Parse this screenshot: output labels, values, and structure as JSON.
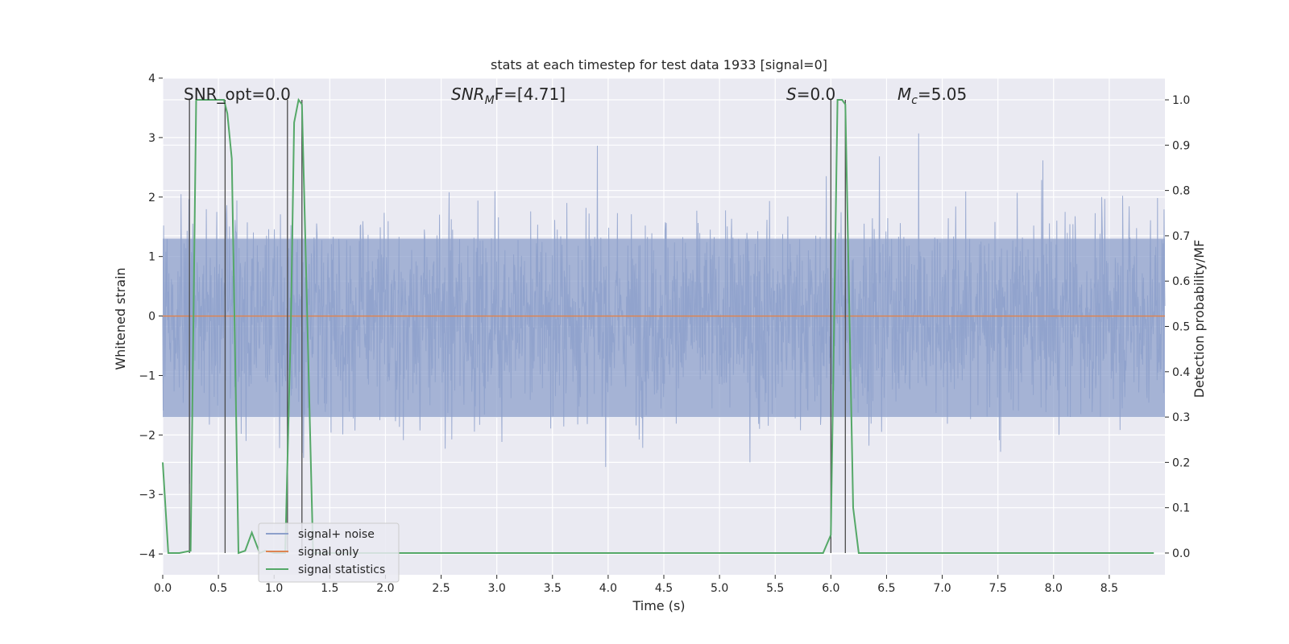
{
  "chart_data": {
    "type": "line",
    "title": "stats at each timestep for test data 1933 [signal=0]",
    "xlabel": "Time (s)",
    "ylabel": "Whitened strain",
    "y2label": "Detection probability/MF",
    "xlim": [
      0.0,
      9.0
    ],
    "ylim": [
      -4.35,
      4.0
    ],
    "y2lim": [
      -0.048,
      1.048
    ],
    "xticks": [
      0.0,
      0.5,
      1.0,
      1.5,
      2.0,
      2.5,
      3.0,
      3.5,
      4.0,
      4.5,
      5.0,
      5.5,
      6.0,
      6.5,
      7.0,
      7.5,
      8.0,
      8.5
    ],
    "xtick_labels": [
      "0.0",
      "0.5",
      "1.0",
      "1.5",
      "2.0",
      "2.5",
      "3.0",
      "3.5",
      "4.0",
      "4.5",
      "5.0",
      "5.5",
      "6.0",
      "6.5",
      "7.0",
      "7.5",
      "8.0",
      "8.5"
    ],
    "yticks": [
      4,
      3,
      2,
      1,
      0,
      -1,
      -2,
      -3,
      -4
    ],
    "ytick_labels": [
      "4",
      "3",
      "2",
      "1",
      "0",
      "−1",
      "−2",
      "−3",
      "−4"
    ],
    "y2ticks": [
      1.0,
      0.9,
      0.8,
      0.7,
      0.6,
      0.5,
      0.4,
      0.3,
      0.2,
      0.1,
      0.0
    ],
    "y2tick_labels": [
      "1.0",
      "0.9",
      "0.8",
      "0.7",
      "0.6",
      "0.5",
      "0.4",
      "0.3",
      "0.2",
      "0.1",
      "0.0"
    ],
    "grid": true,
    "legend_position": "lower-left",
    "annotations": {
      "snr_opt": "SNR_opt=0.0",
      "snr_mf_sym": "SNR",
      "snr_mf_sub": "M",
      "snr_mf_rest": "F=[4.71]",
      "s_sym": "S",
      "s_rest": "=0.0",
      "mc_sym": "M",
      "mc_sub": "c",
      "mc_rest": "=5.05"
    },
    "series": [
      {
        "name": "signal+ noise",
        "axis": "left",
        "color": "#8da0cb",
        "description_values": "noise-like whitened strain, approx. within [-3.6, 3.6]",
        "envelope_dense": [
          -1.7,
          1.3
        ]
      },
      {
        "name": "signal only",
        "axis": "left",
        "color": "#dd8452",
        "x": [
          0.0,
          9.0
        ],
        "y": [
          0.0,
          0.0
        ]
      },
      {
        "name": "signal statistics",
        "axis": "right",
        "color": "#55a868",
        "x": [
          0.0,
          0.05,
          0.15,
          0.25,
          0.3,
          0.32,
          0.55,
          0.58,
          0.62,
          0.68,
          0.74,
          0.8,
          0.87,
          0.92,
          1.0,
          1.05,
          1.1,
          1.15,
          1.18,
          1.22,
          1.25,
          1.3,
          1.35,
          1.5,
          2.8,
          3.0,
          4.0,
          5.0,
          5.93,
          6.0,
          6.06,
          6.1,
          6.13,
          6.2,
          6.25,
          7.0,
          8.0,
          8.9
        ],
        "y": [
          0.2,
          0.0,
          0.0,
          0.005,
          1.0,
          1.0,
          1.0,
          0.97,
          0.87,
          0.0,
          0.005,
          0.045,
          0.0,
          0.005,
          0.0,
          0.0,
          0.0,
          0.5,
          0.95,
          1.0,
          0.99,
          0.5,
          0.0,
          0.0,
          0.0,
          0.0,
          0.0,
          0.0,
          0.0,
          0.04,
          1.0,
          1.0,
          0.99,
          0.1,
          0.0,
          0.0,
          0.0,
          0.0
        ]
      }
    ],
    "vertical_markers": [
      0.24,
      0.56,
      1.12,
      1.25,
      6.0,
      6.13
    ]
  }
}
